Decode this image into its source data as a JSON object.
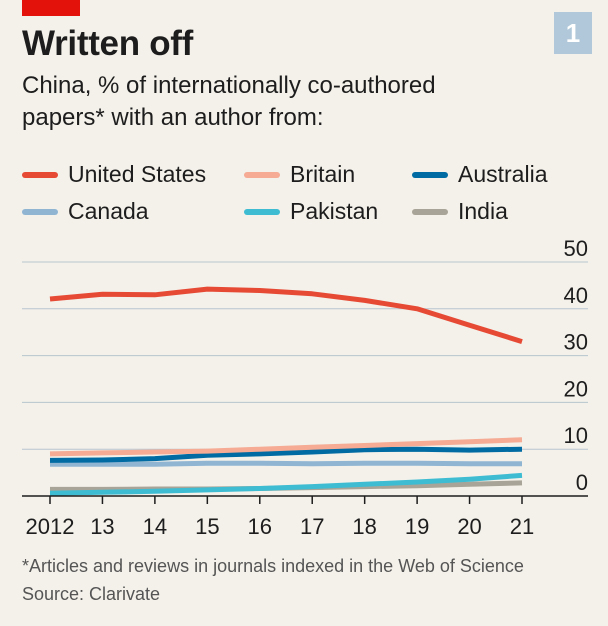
{
  "header": {
    "title": "Written off",
    "badge": "1"
  },
  "subtitle_lines": [
    "China, % of internationally co-authored",
    "papers* with an author from:"
  ],
  "colors": {
    "United States": "#e64a35",
    "Britain": "#f5ab94",
    "Australia": "#006ba2",
    "Canada": "#8fb5d3",
    "Pakistan": "#3ebcd2",
    "India": "#a8a497",
    "brand_red": "#e3120b"
  },
  "chart_data": {
    "type": "line",
    "title": "Written off",
    "subtitle": "China, % of internationally co-authored papers* with an author from:",
    "categories": [
      "2012",
      "13",
      "14",
      "15",
      "16",
      "17",
      "18",
      "19",
      "20",
      "21"
    ],
    "x": [
      2012,
      2013,
      2014,
      2015,
      2016,
      2017,
      2018,
      2019,
      2020,
      2021
    ],
    "ylim": [
      0,
      50
    ],
    "yticks": [
      "0",
      "10",
      "20",
      "30",
      "40",
      "50"
    ],
    "y_axis_side": "right",
    "grid": true,
    "legend_position": "top",
    "series": [
      {
        "name": "United States",
        "values": [
          42.1,
          43.1,
          43.0,
          44.2,
          43.9,
          43.2,
          41.8,
          40.0,
          36.5,
          33.0
        ]
      },
      {
        "name": "Britain",
        "values": [
          9.0,
          9.2,
          9.4,
          9.6,
          10.0,
          10.4,
          10.8,
          11.2,
          11.6,
          12.0
        ]
      },
      {
        "name": "Australia",
        "values": [
          7.6,
          7.7,
          8.0,
          8.7,
          9.0,
          9.4,
          9.9,
          10.0,
          9.8,
          10.0
        ]
      },
      {
        "name": "Canada",
        "values": [
          6.8,
          6.8,
          6.8,
          7.0,
          7.0,
          6.9,
          7.0,
          7.0,
          6.9,
          6.9
        ]
      },
      {
        "name": "Pakistan",
        "values": [
          0.6,
          0.8,
          1.0,
          1.3,
          1.6,
          2.0,
          2.5,
          3.0,
          3.6,
          4.4
        ]
      },
      {
        "name": "India",
        "values": [
          1.4,
          1.4,
          1.5,
          1.5,
          1.6,
          1.8,
          2.0,
          2.2,
          2.5,
          2.8
        ]
      }
    ]
  },
  "footnote": "*Articles and reviews in journals indexed in the Web of Science",
  "source": "Source: Clarivate"
}
